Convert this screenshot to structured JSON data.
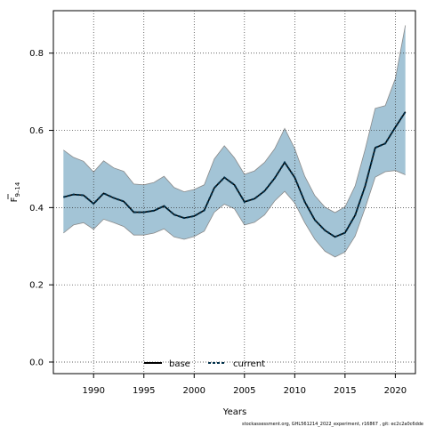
{
  "chart_data": {
    "type": "line",
    "xlabel": "Years",
    "ylabel_main": "F",
    "ylabel_sub": "9–14",
    "xlim": [
      1986,
      2022
    ],
    "ylim": [
      -0.03,
      0.91
    ],
    "x_ticks": [
      1990,
      1995,
      2000,
      2005,
      2010,
      2015,
      2020
    ],
    "y_ticks": [
      0.0,
      0.2,
      0.4,
      0.6,
      0.8
    ],
    "y_tick_labels": [
      "0.0",
      "0.2",
      "0.4",
      "0.6",
      "0.8"
    ],
    "grid": true,
    "legend_position": "bottom-center",
    "colors": {
      "band_fill": "#a3c4d6",
      "band_edge": "#8a8a8a",
      "current_line": "#00304a",
      "base_line": "#000000"
    },
    "x": [
      1987,
      1988,
      1989,
      1990,
      1991,
      1992,
      1993,
      1994,
      1995,
      1996,
      1997,
      1998,
      1999,
      2000,
      2001,
      2002,
      2003,
      2004,
      2005,
      2006,
      2007,
      2008,
      2009,
      2010,
      2011,
      2012,
      2013,
      2014,
      2015,
      2016,
      2017,
      2018,
      2019,
      2020,
      2021
    ],
    "series": [
      {
        "name": "base",
        "values": [
          0.427,
          0.434,
          0.432,
          0.41,
          0.437,
          0.425,
          0.416,
          0.388,
          0.388,
          0.392,
          0.404,
          0.382,
          0.373,
          0.378,
          0.393,
          0.451,
          0.478,
          0.459,
          0.415,
          0.423,
          0.443,
          0.476,
          0.517,
          0.478,
          0.415,
          0.368,
          0.341,
          0.324,
          0.335,
          0.38,
          0.456,
          0.555,
          0.566,
          0.608,
          0.648
        ]
      },
      {
        "name": "current",
        "values": [
          0.427,
          0.434,
          0.432,
          0.41,
          0.437,
          0.425,
          0.416,
          0.388,
          0.388,
          0.392,
          0.404,
          0.382,
          0.373,
          0.378,
          0.393,
          0.451,
          0.478,
          0.459,
          0.415,
          0.423,
          0.443,
          0.476,
          0.517,
          0.478,
          0.415,
          0.368,
          0.341,
          0.324,
          0.335,
          0.38,
          0.456,
          0.555,
          0.566,
          0.608,
          0.648
        ]
      }
    ],
    "band": {
      "upper": [
        0.549,
        0.53,
        0.52,
        0.492,
        0.521,
        0.503,
        0.494,
        0.461,
        0.459,
        0.465,
        0.481,
        0.452,
        0.441,
        0.447,
        0.459,
        0.526,
        0.56,
        0.529,
        0.486,
        0.495,
        0.517,
        0.552,
        0.605,
        0.553,
        0.481,
        0.431,
        0.401,
        0.387,
        0.402,
        0.456,
        0.551,
        0.657,
        0.664,
        0.734,
        0.872
      ],
      "lower": [
        0.334,
        0.355,
        0.361,
        0.344,
        0.37,
        0.361,
        0.351,
        0.329,
        0.329,
        0.334,
        0.345,
        0.324,
        0.318,
        0.325,
        0.339,
        0.388,
        0.409,
        0.397,
        0.355,
        0.362,
        0.381,
        0.417,
        0.442,
        0.412,
        0.361,
        0.318,
        0.287,
        0.272,
        0.285,
        0.326,
        0.399,
        0.479,
        0.493,
        0.496,
        0.485
      ]
    }
  },
  "legend": {
    "base_label": "base",
    "current_label": "current"
  },
  "footer": "stockassessment.org, GHL561214_2022_experiment, r16867 , git: ec2c2a0c6dde"
}
